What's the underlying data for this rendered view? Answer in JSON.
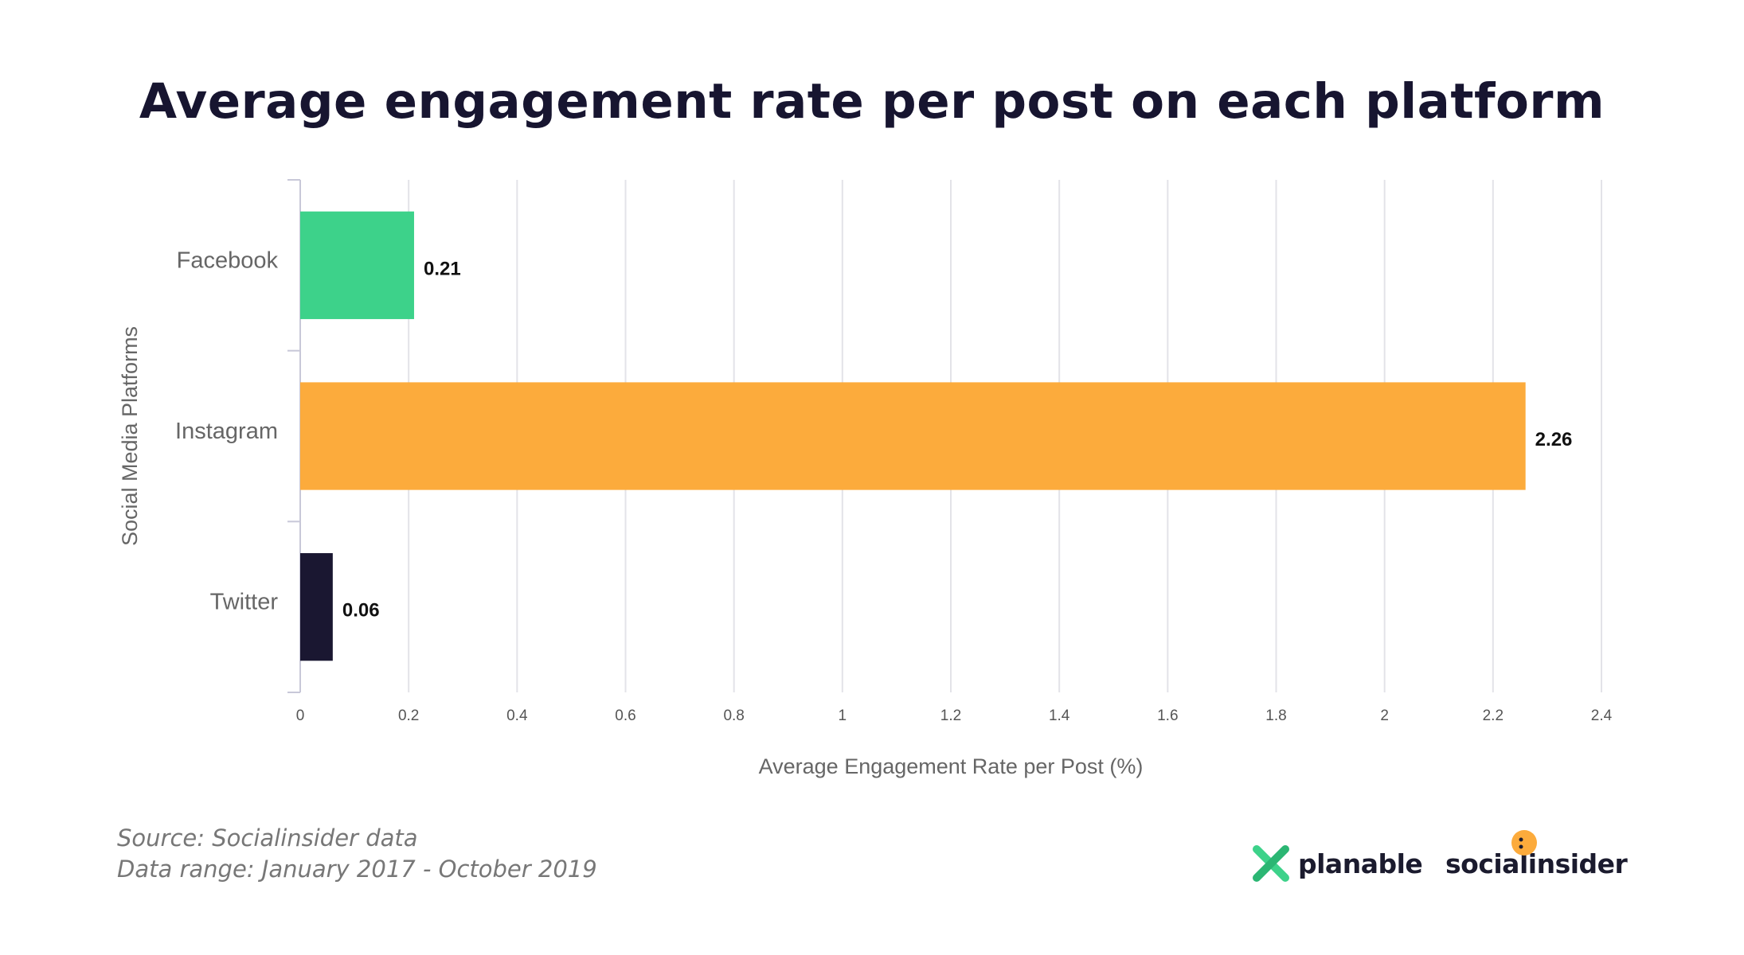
{
  "title": "Average engagement rate per post on each platform",
  "footer": {
    "source": "Source: Socialinsider data",
    "range": "Data range: January 2017 - October 2019"
  },
  "logos": {
    "planable": "planable",
    "socialinsider": "socialinsider"
  },
  "colors": {
    "facebook": "#3dd28a",
    "instagram": "#fcab3c",
    "twitter": "#1a1731",
    "grid": "#e3e3e8",
    "axis": "#c8c8d8"
  },
  "chart_data": {
    "type": "bar",
    "orientation": "horizontal",
    "categories": [
      "Facebook",
      "Instagram",
      "Twitter"
    ],
    "values": [
      0.21,
      2.26,
      0.06
    ],
    "value_labels": [
      "0.21",
      "2.26",
      "0.06"
    ],
    "xlabel": "Average Engagement Rate per Post (%)",
    "ylabel": "Social Media Platforms",
    "xlim": [
      0,
      2.4
    ],
    "xticks": [
      0,
      0.2,
      0.4,
      0.6,
      0.8,
      1,
      1.2,
      1.4,
      1.6,
      1.8,
      2,
      2.2,
      2.4
    ],
    "grid": true
  }
}
